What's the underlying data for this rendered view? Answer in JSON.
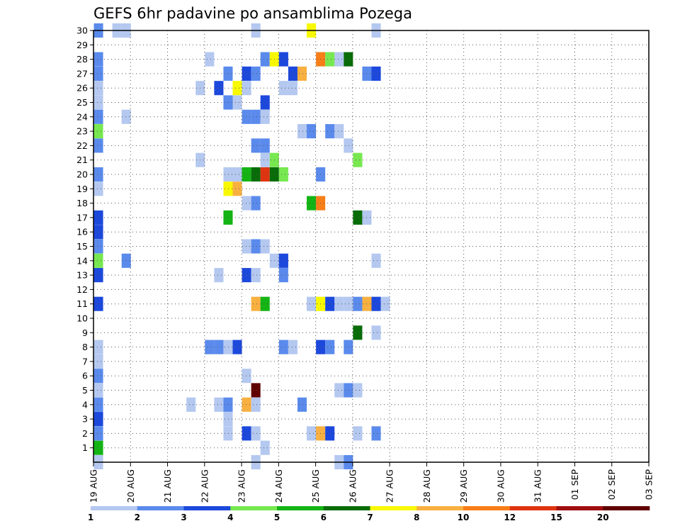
{
  "chart_data": {
    "type": "heatmap",
    "title": "GEFS 6hr padavine po ansamblima Pozega",
    "xlabel": "",
    "ylabel": "",
    "x_tick_labels": [
      "19 AUG",
      "20 AUG",
      "21 AUG",
      "22 AUG",
      "23 AUG",
      "24 AUG",
      "25 AUG",
      "26 AUG",
      "27 AUG",
      "28 AUG",
      "29 AUG",
      "30 AUG",
      "31 AUG",
      "01 SEP",
      "02 SEP",
      "03 SEP"
    ],
    "y_tick_labels": [
      "1",
      "2",
      "3",
      "4",
      "5",
      "6",
      "7",
      "8",
      "9",
      "10",
      "11",
      "12",
      "13",
      "14",
      "15",
      "16",
      "17",
      "18",
      "19",
      "20",
      "21",
      "22",
      "23",
      "24",
      "25",
      "26",
      "27",
      "28",
      "29",
      "30"
    ],
    "x_unit": "6-hour step since 19 AUG 00Z",
    "xlim": [
      0,
      60
    ],
    "ylim": [
      0,
      30
    ],
    "grid": true,
    "legend_placement": "bottom",
    "legend": {
      "labels": [
        "1",
        "2",
        "3",
        "4",
        "5",
        "6",
        "7",
        "8",
        "10",
        "12",
        "15",
        "20"
      ],
      "colors": [
        "#b4c8f0",
        "#5a8aec",
        "#1c48dc",
        "#78e850",
        "#14b414",
        "#086c08",
        "#f8f800",
        "#f8b040",
        "#f87e18",
        "#e03410",
        "#a00e0e",
        "#600000"
      ]
    },
    "cells_format": "[x_step, ensemble_member, color_class_index]",
    "cells": [
      [
        0,
        30,
        1
      ],
      [
        2,
        30,
        0
      ],
      [
        3,
        30,
        0
      ],
      [
        17,
        30,
        0
      ],
      [
        23,
        30,
        6
      ],
      [
        30,
        30,
        0
      ],
      [
        0,
        28,
        1
      ],
      [
        12,
        28,
        0
      ],
      [
        18,
        28,
        1
      ],
      [
        19,
        28,
        6
      ],
      [
        20,
        28,
        2
      ],
      [
        24,
        28,
        8
      ],
      [
        25,
        28,
        3
      ],
      [
        26,
        28,
        0
      ],
      [
        27,
        28,
        5
      ],
      [
        0,
        27,
        1
      ],
      [
        14,
        27,
        1
      ],
      [
        16,
        27,
        2
      ],
      [
        17,
        27,
        1
      ],
      [
        21,
        27,
        2
      ],
      [
        22,
        27,
        7
      ],
      [
        29,
        27,
        1
      ],
      [
        30,
        27,
        2
      ],
      [
        0,
        26,
        0
      ],
      [
        11,
        26,
        0
      ],
      [
        13,
        26,
        2
      ],
      [
        15,
        26,
        6
      ],
      [
        16,
        26,
        0
      ],
      [
        20,
        26,
        0
      ],
      [
        21,
        26,
        0
      ],
      [
        0,
        25,
        0
      ],
      [
        14,
        25,
        1
      ],
      [
        15,
        25,
        0
      ],
      [
        18,
        25,
        2
      ],
      [
        0,
        24,
        1
      ],
      [
        3,
        24,
        0
      ],
      [
        16,
        24,
        1
      ],
      [
        17,
        24,
        1
      ],
      [
        18,
        24,
        0
      ],
      [
        0,
        23,
        3
      ],
      [
        22,
        23,
        0
      ],
      [
        23,
        23,
        1
      ],
      [
        25,
        23,
        1
      ],
      [
        26,
        23,
        0
      ],
      [
        0,
        22,
        1
      ],
      [
        17,
        22,
        1
      ],
      [
        18,
        22,
        1
      ],
      [
        27,
        22,
        0
      ],
      [
        11,
        21,
        0
      ],
      [
        18,
        21,
        0
      ],
      [
        19,
        21,
        3
      ],
      [
        28,
        21,
        3
      ],
      [
        0,
        20,
        1
      ],
      [
        14,
        20,
        0
      ],
      [
        15,
        20,
        0
      ],
      [
        16,
        20,
        4
      ],
      [
        17,
        20,
        5
      ],
      [
        18,
        20,
        9
      ],
      [
        19,
        20,
        5
      ],
      [
        20,
        20,
        3
      ],
      [
        24,
        20,
        1
      ],
      [
        0,
        19,
        0
      ],
      [
        14,
        19,
        6
      ],
      [
        15,
        19,
        7
      ],
      [
        16,
        18,
        0
      ],
      [
        17,
        18,
        1
      ],
      [
        23,
        18,
        4
      ],
      [
        24,
        18,
        8
      ],
      [
        0,
        17,
        2
      ],
      [
        14,
        17,
        4
      ],
      [
        28,
        17,
        5
      ],
      [
        29,
        17,
        0
      ],
      [
        0,
        16,
        2
      ],
      [
        0,
        15,
        1
      ],
      [
        16,
        15,
        0
      ],
      [
        17,
        15,
        1
      ],
      [
        18,
        15,
        0
      ],
      [
        0,
        14,
        3
      ],
      [
        3,
        14,
        1
      ],
      [
        19,
        14,
        0
      ],
      [
        20,
        14,
        2
      ],
      [
        30,
        14,
        0
      ],
      [
        0,
        13,
        2
      ],
      [
        13,
        13,
        0
      ],
      [
        16,
        13,
        2
      ],
      [
        17,
        13,
        0
      ],
      [
        20,
        13,
        1
      ],
      [
        0,
        11,
        2
      ],
      [
        17,
        11,
        7
      ],
      [
        18,
        11,
        4
      ],
      [
        23,
        11,
        0
      ],
      [
        24,
        11,
        6
      ],
      [
        25,
        11,
        2
      ],
      [
        26,
        11,
        0
      ],
      [
        27,
        11,
        0
      ],
      [
        28,
        11,
        1
      ],
      [
        29,
        11,
        7
      ],
      [
        30,
        11,
        2
      ],
      [
        31,
        11,
        0
      ],
      [
        28,
        9,
        5
      ],
      [
        30,
        9,
        0
      ],
      [
        0,
        8,
        0
      ],
      [
        12,
        8,
        1
      ],
      [
        13,
        8,
        1
      ],
      [
        14,
        8,
        0
      ],
      [
        15,
        8,
        2
      ],
      [
        20,
        8,
        1
      ],
      [
        21,
        8,
        0
      ],
      [
        24,
        8,
        2
      ],
      [
        25,
        8,
        1
      ],
      [
        27,
        8,
        1
      ],
      [
        0,
        7,
        0
      ],
      [
        0,
        6,
        1
      ],
      [
        16,
        6,
        0
      ],
      [
        0,
        5,
        0
      ],
      [
        17,
        5,
        11
      ],
      [
        26,
        5,
        0
      ],
      [
        27,
        5,
        1
      ],
      [
        28,
        5,
        0
      ],
      [
        0,
        4,
        1
      ],
      [
        10,
        4,
        0
      ],
      [
        13,
        4,
        0
      ],
      [
        14,
        4,
        1
      ],
      [
        16,
        4,
        7
      ],
      [
        17,
        4,
        0
      ],
      [
        22,
        4,
        1
      ],
      [
        0,
        3,
        2
      ],
      [
        14,
        3,
        0
      ],
      [
        0,
        2,
        1
      ],
      [
        14,
        2,
        0
      ],
      [
        16,
        2,
        2
      ],
      [
        17,
        2,
        0
      ],
      [
        23,
        2,
        0
      ],
      [
        24,
        2,
        7
      ],
      [
        25,
        2,
        2
      ],
      [
        28,
        2,
        0
      ],
      [
        30,
        2,
        1
      ],
      [
        0,
        1,
        4
      ],
      [
        18,
        1,
        0
      ],
      [
        0,
        0,
        0
      ],
      [
        17,
        0,
        0
      ],
      [
        26,
        0,
        0
      ],
      [
        27,
        0,
        1
      ]
    ]
  }
}
